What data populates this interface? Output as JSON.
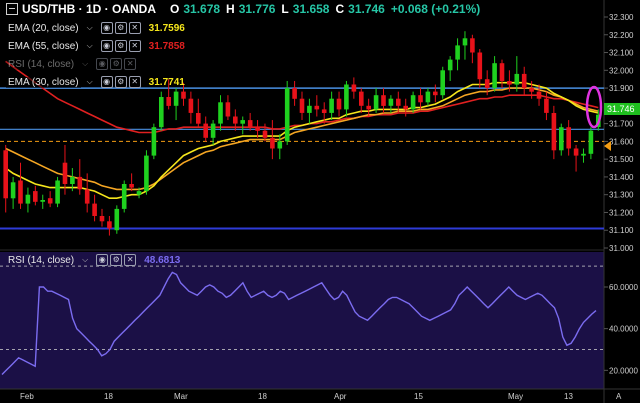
{
  "header": {
    "symbol": "USD/THB · 1D · OANDA",
    "open_label": "O",
    "open_value": "31.678",
    "high_label": "H",
    "high_value": "31.776",
    "low_label": "L",
    "low_value": "31.658",
    "close_label": "C",
    "close_value": "31.746",
    "change": "+0.068 (+0.21%)"
  },
  "indicators": [
    {
      "name": "EMA (20, close)",
      "value": "31.7596",
      "color": "#f5e61c"
    },
    {
      "name": "EMA (55, close)",
      "value": "31.7858",
      "color": "#e02020"
    },
    {
      "name": "RSI (14, close)",
      "value": "",
      "color": "#6a7cff"
    },
    {
      "name": "EMA (30, close)",
      "value": "31.7741",
      "color": "#f5a623"
    }
  ],
  "rsi_panel": {
    "name": "RSI (14, close)",
    "value": "48.6813"
  },
  "colors": {
    "up": "#1fd11f",
    "down": "#e8121a",
    "rsi_line": "#7b6cf0",
    "rsi_bg": "#1b1046",
    "level_line": "#2e3bd8",
    "price_line": "#4a90e2",
    "dashed_line": "#f39c12",
    "ellipse": "#e033e0"
  },
  "chart_data": [
    {
      "type": "candlestick",
      "title": "USD/THB · 1D · OANDA",
      "y_axis_ticks": [
        "32.300",
        "32.200",
        "32.100",
        "32.000",
        "31.900",
        "31.800",
        "31.700",
        "31.600",
        "31.500",
        "31.400",
        "31.300",
        "31.200",
        "31.100",
        "31.000"
      ],
      "ylim": [
        31.0,
        32.3
      ],
      "x_axis_ticks": [
        "Feb",
        "18",
        "Mar",
        "18",
        "Apr",
        "15",
        "May",
        "13",
        "A"
      ],
      "current_price_label": "31.746",
      "horizontal_lines": [
        {
          "name": "resistance",
          "value": 31.9
        },
        {
          "name": "support",
          "value": 31.11
        },
        {
          "name": "price",
          "value": 31.668
        },
        {
          "name": "dashed",
          "value": 31.6
        }
      ],
      "candles": [
        {
          "o": 31.55,
          "h": 31.58,
          "l": 31.2,
          "c": 31.28
        },
        {
          "o": 31.28,
          "h": 31.4,
          "l": 31.22,
          "c": 31.37
        },
        {
          "o": 31.38,
          "h": 31.48,
          "l": 31.22,
          "c": 31.25
        },
        {
          "o": 31.25,
          "h": 31.34,
          "l": 31.2,
          "c": 31.3
        },
        {
          "o": 31.32,
          "h": 31.35,
          "l": 31.24,
          "c": 31.26
        },
        {
          "o": 31.26,
          "h": 31.3,
          "l": 31.22,
          "c": 31.27
        },
        {
          "o": 31.28,
          "h": 31.32,
          "l": 31.23,
          "c": 31.25
        },
        {
          "o": 31.25,
          "h": 31.4,
          "l": 31.23,
          "c": 31.38
        },
        {
          "o": 31.48,
          "h": 31.58,
          "l": 31.3,
          "c": 31.36
        },
        {
          "o": 31.36,
          "h": 31.45,
          "l": 31.32,
          "c": 31.4
        },
        {
          "o": 31.4,
          "h": 31.5,
          "l": 31.3,
          "c": 31.33
        },
        {
          "o": 31.33,
          "h": 31.42,
          "l": 31.2,
          "c": 31.25
        },
        {
          "o": 31.25,
          "h": 31.3,
          "l": 31.15,
          "c": 31.18
        },
        {
          "o": 31.18,
          "h": 31.22,
          "l": 31.12,
          "c": 31.15
        },
        {
          "o": 31.15,
          "h": 31.18,
          "l": 31.07,
          "c": 31.11
        },
        {
          "o": 31.1,
          "h": 31.24,
          "l": 31.08,
          "c": 31.22
        },
        {
          "o": 31.22,
          "h": 31.38,
          "l": 31.2,
          "c": 31.36
        },
        {
          "o": 31.36,
          "h": 31.42,
          "l": 31.32,
          "c": 31.34
        },
        {
          "o": 31.3,
          "h": 31.34,
          "l": 31.28,
          "c": 31.32
        },
        {
          "o": 31.32,
          "h": 31.55,
          "l": 31.3,
          "c": 31.52
        },
        {
          "o": 31.52,
          "h": 31.7,
          "l": 31.5,
          "c": 31.68
        },
        {
          "o": 31.68,
          "h": 31.88,
          "l": 31.66,
          "c": 31.85
        },
        {
          "o": 31.85,
          "h": 31.95,
          "l": 31.78,
          "c": 31.8
        },
        {
          "o": 31.8,
          "h": 31.9,
          "l": 31.72,
          "c": 31.88
        },
        {
          "o": 31.88,
          "h": 31.93,
          "l": 31.8,
          "c": 31.84
        },
        {
          "o": 31.84,
          "h": 31.88,
          "l": 31.7,
          "c": 31.76
        },
        {
          "o": 31.76,
          "h": 31.84,
          "l": 31.68,
          "c": 31.7
        },
        {
          "o": 31.7,
          "h": 31.74,
          "l": 31.6,
          "c": 31.62
        },
        {
          "o": 31.62,
          "h": 31.72,
          "l": 31.58,
          "c": 31.7
        },
        {
          "o": 31.7,
          "h": 31.86,
          "l": 31.66,
          "c": 31.82
        },
        {
          "o": 31.82,
          "h": 31.86,
          "l": 31.72,
          "c": 31.74
        },
        {
          "o": 31.74,
          "h": 31.78,
          "l": 31.66,
          "c": 31.7
        },
        {
          "o": 31.7,
          "h": 31.74,
          "l": 31.64,
          "c": 31.72
        },
        {
          "o": 31.72,
          "h": 31.76,
          "l": 31.66,
          "c": 31.68
        },
        {
          "o": 31.68,
          "h": 31.72,
          "l": 31.62,
          "c": 31.66
        },
        {
          "o": 31.66,
          "h": 31.7,
          "l": 31.6,
          "c": 31.62
        },
        {
          "o": 31.62,
          "h": 31.72,
          "l": 31.5,
          "c": 31.56
        },
        {
          "o": 31.56,
          "h": 31.64,
          "l": 31.5,
          "c": 31.6
        },
        {
          "o": 31.6,
          "h": 31.94,
          "l": 31.58,
          "c": 31.9
        },
        {
          "o": 31.9,
          "h": 31.94,
          "l": 31.8,
          "c": 31.84
        },
        {
          "o": 31.84,
          "h": 31.88,
          "l": 31.72,
          "c": 31.76
        },
        {
          "o": 31.76,
          "h": 31.84,
          "l": 31.7,
          "c": 31.8
        },
        {
          "o": 31.8,
          "h": 31.86,
          "l": 31.74,
          "c": 31.78
        },
        {
          "o": 31.78,
          "h": 31.82,
          "l": 31.7,
          "c": 31.76
        },
        {
          "o": 31.76,
          "h": 31.88,
          "l": 31.72,
          "c": 31.84
        },
        {
          "o": 31.84,
          "h": 31.88,
          "l": 31.74,
          "c": 31.78
        },
        {
          "o": 31.78,
          "h": 31.94,
          "l": 31.74,
          "c": 31.92
        },
        {
          "o": 31.92,
          "h": 31.96,
          "l": 31.84,
          "c": 31.88
        },
        {
          "o": 31.88,
          "h": 31.9,
          "l": 31.76,
          "c": 31.8
        },
        {
          "o": 31.8,
          "h": 31.84,
          "l": 31.74,
          "c": 31.78
        },
        {
          "o": 31.78,
          "h": 31.9,
          "l": 31.76,
          "c": 31.86
        },
        {
          "o": 31.86,
          "h": 31.9,
          "l": 31.76,
          "c": 31.8
        },
        {
          "o": 31.8,
          "h": 31.86,
          "l": 31.76,
          "c": 31.84
        },
        {
          "o": 31.84,
          "h": 31.88,
          "l": 31.76,
          "c": 31.8
        },
        {
          "o": 31.8,
          "h": 31.84,
          "l": 31.74,
          "c": 31.78
        },
        {
          "o": 31.78,
          "h": 31.88,
          "l": 31.76,
          "c": 31.86
        },
        {
          "o": 31.86,
          "h": 31.9,
          "l": 31.78,
          "c": 31.82
        },
        {
          "o": 31.82,
          "h": 31.9,
          "l": 31.8,
          "c": 31.88
        },
        {
          "o": 31.88,
          "h": 31.92,
          "l": 31.82,
          "c": 31.86
        },
        {
          "o": 31.86,
          "h": 32.02,
          "l": 31.84,
          "c": 32.0
        },
        {
          "o": 32.0,
          "h": 32.08,
          "l": 31.94,
          "c": 32.06
        },
        {
          "o": 32.06,
          "h": 32.18,
          "l": 32.0,
          "c": 32.14
        },
        {
          "o": 32.14,
          "h": 32.22,
          "l": 32.06,
          "c": 32.18
        },
        {
          "o": 32.18,
          "h": 32.2,
          "l": 32.04,
          "c": 32.1
        },
        {
          "o": 32.1,
          "h": 32.12,
          "l": 31.9,
          "c": 31.95
        },
        {
          "o": 31.95,
          "h": 32.0,
          "l": 31.86,
          "c": 31.9
        },
        {
          "o": 31.9,
          "h": 32.08,
          "l": 31.88,
          "c": 32.04
        },
        {
          "o": 32.04,
          "h": 32.06,
          "l": 31.9,
          "c": 31.94
        },
        {
          "o": 31.94,
          "h": 32.0,
          "l": 31.88,
          "c": 31.92
        },
        {
          "o": 31.92,
          "h": 32.08,
          "l": 31.88,
          "c": 31.98
        },
        {
          "o": 31.98,
          "h": 32.02,
          "l": 31.86,
          "c": 31.9
        },
        {
          "o": 31.9,
          "h": 31.94,
          "l": 31.84,
          "c": 31.88
        },
        {
          "o": 31.88,
          "h": 31.92,
          "l": 31.8,
          "c": 31.84
        },
        {
          "o": 31.84,
          "h": 31.88,
          "l": 31.72,
          "c": 31.76
        },
        {
          "o": 31.76,
          "h": 31.8,
          "l": 31.5,
          "c": 31.55
        },
        {
          "o": 31.55,
          "h": 31.7,
          "l": 31.52,
          "c": 31.68
        },
        {
          "o": 31.68,
          "h": 31.72,
          "l": 31.52,
          "c": 31.56
        },
        {
          "o": 31.56,
          "h": 31.58,
          "l": 31.43,
          "c": 31.52
        },
        {
          "o": 31.52,
          "h": 31.56,
          "l": 31.48,
          "c": 31.53
        },
        {
          "o": 31.53,
          "h": 31.68,
          "l": 31.5,
          "c": 31.66
        },
        {
          "o": 31.68,
          "h": 31.78,
          "l": 31.66,
          "c": 31.75
        }
      ],
      "ema_20": [
        31.45,
        31.42,
        31.4,
        31.38,
        31.36,
        31.35,
        31.34,
        31.34,
        31.34,
        31.34,
        31.34,
        31.33,
        31.32,
        31.3,
        31.28,
        31.28,
        31.29,
        31.3,
        31.3,
        31.32,
        31.35,
        31.4,
        31.44,
        31.48,
        31.52,
        31.54,
        31.56,
        31.57,
        31.58,
        31.6,
        31.61,
        31.62,
        31.63,
        31.63,
        31.63,
        31.63,
        31.63,
        31.63,
        31.66,
        31.68,
        31.69,
        31.7,
        31.71,
        31.72,
        31.73,
        31.73,
        31.75,
        31.76,
        31.77,
        31.77,
        31.78,
        31.78,
        31.78,
        31.78,
        31.78,
        31.79,
        31.79,
        31.8,
        31.81,
        31.83,
        31.85,
        31.88,
        31.9,
        31.92,
        31.92,
        31.92,
        31.93,
        31.93,
        31.93,
        31.93,
        31.93,
        31.92,
        31.91,
        31.9,
        31.87,
        31.85,
        31.83,
        31.8,
        31.78,
        31.77,
        31.76
      ],
      "ema_30": [
        31.56,
        31.54,
        31.52,
        31.5,
        31.48,
        31.46,
        31.44,
        31.42,
        31.41,
        31.4,
        31.39,
        31.38,
        31.37,
        31.35,
        31.34,
        31.33,
        31.33,
        31.33,
        31.33,
        31.34,
        31.36,
        31.39,
        31.42,
        31.45,
        31.48,
        31.5,
        31.52,
        31.54,
        31.55,
        31.57,
        31.58,
        31.59,
        31.6,
        31.61,
        31.61,
        31.61,
        31.61,
        31.61,
        31.63,
        31.65,
        31.66,
        31.67,
        31.68,
        31.69,
        31.7,
        31.71,
        31.72,
        31.73,
        31.74,
        31.75,
        31.75,
        31.76,
        31.76,
        31.77,
        31.77,
        31.77,
        31.78,
        31.78,
        31.79,
        31.8,
        31.82,
        31.84,
        31.86,
        31.87,
        31.88,
        31.88,
        31.89,
        31.89,
        31.9,
        31.9,
        31.9,
        31.9,
        31.89,
        31.88,
        31.86,
        31.85,
        31.83,
        31.81,
        31.79,
        31.78,
        31.77
      ],
      "ema_55": [
        32.05,
        32.02,
        31.99,
        31.96,
        31.93,
        31.9,
        31.87,
        31.84,
        31.82,
        31.8,
        31.78,
        31.76,
        31.74,
        31.72,
        31.7,
        31.68,
        31.67,
        31.66,
        31.65,
        31.65,
        31.65,
        31.66,
        31.67,
        31.67,
        31.68,
        31.68,
        31.68,
        31.68,
        31.68,
        31.68,
        31.68,
        31.68,
        31.68,
        31.68,
        31.68,
        31.68,
        31.67,
        31.67,
        31.68,
        31.69,
        31.69,
        31.7,
        31.7,
        31.71,
        31.71,
        31.72,
        31.73,
        31.73,
        31.74,
        31.74,
        31.75,
        31.75,
        31.75,
        31.76,
        31.76,
        31.76,
        31.77,
        31.77,
        31.78,
        31.79,
        31.8,
        31.81,
        31.82,
        31.83,
        31.84,
        31.84,
        31.85,
        31.85,
        31.86,
        31.86,
        31.86,
        31.86,
        31.86,
        31.85,
        31.84,
        31.84,
        31.83,
        31.82,
        31.81,
        31.8,
        31.79
      ]
    },
    {
      "type": "line",
      "title": "RSI (14, close)",
      "y_axis_ticks": [
        "60.0000",
        "40.0000",
        "20.0000"
      ],
      "ylim": [
        12,
        72
      ],
      "levels": [
        70,
        30
      ],
      "values": [
        18,
        20,
        22,
        24,
        26,
        25,
        24,
        23,
        22,
        60,
        60,
        58,
        58,
        57,
        56,
        55,
        54,
        45,
        40,
        38,
        36,
        34,
        32,
        30,
        27,
        28,
        30,
        34,
        36,
        38,
        40,
        42,
        44,
        46,
        48,
        50,
        52,
        54,
        56,
        60,
        64,
        67,
        66,
        62,
        60,
        58,
        57,
        56,
        58,
        60,
        61,
        60,
        58,
        57,
        55,
        56,
        58,
        60,
        62,
        58,
        55,
        56,
        57,
        58,
        56,
        55,
        56,
        58,
        57,
        54,
        55,
        56,
        57,
        58,
        59,
        60,
        61,
        62,
        59,
        56,
        54,
        55,
        58,
        56,
        52,
        48,
        46,
        45,
        44,
        46,
        48,
        50,
        52,
        54,
        55,
        55,
        54,
        53,
        52,
        50,
        48,
        46,
        45,
        44,
        45,
        46,
        47,
        48,
        49,
        52,
        56,
        58,
        60,
        58,
        56,
        54,
        52,
        50,
        52,
        54,
        56,
        58,
        60,
        58,
        56,
        55,
        54,
        55,
        56,
        57,
        56,
        54,
        52,
        50,
        45,
        36,
        32,
        33,
        36,
        40,
        43,
        45,
        47,
        48.68
      ]
    }
  ]
}
